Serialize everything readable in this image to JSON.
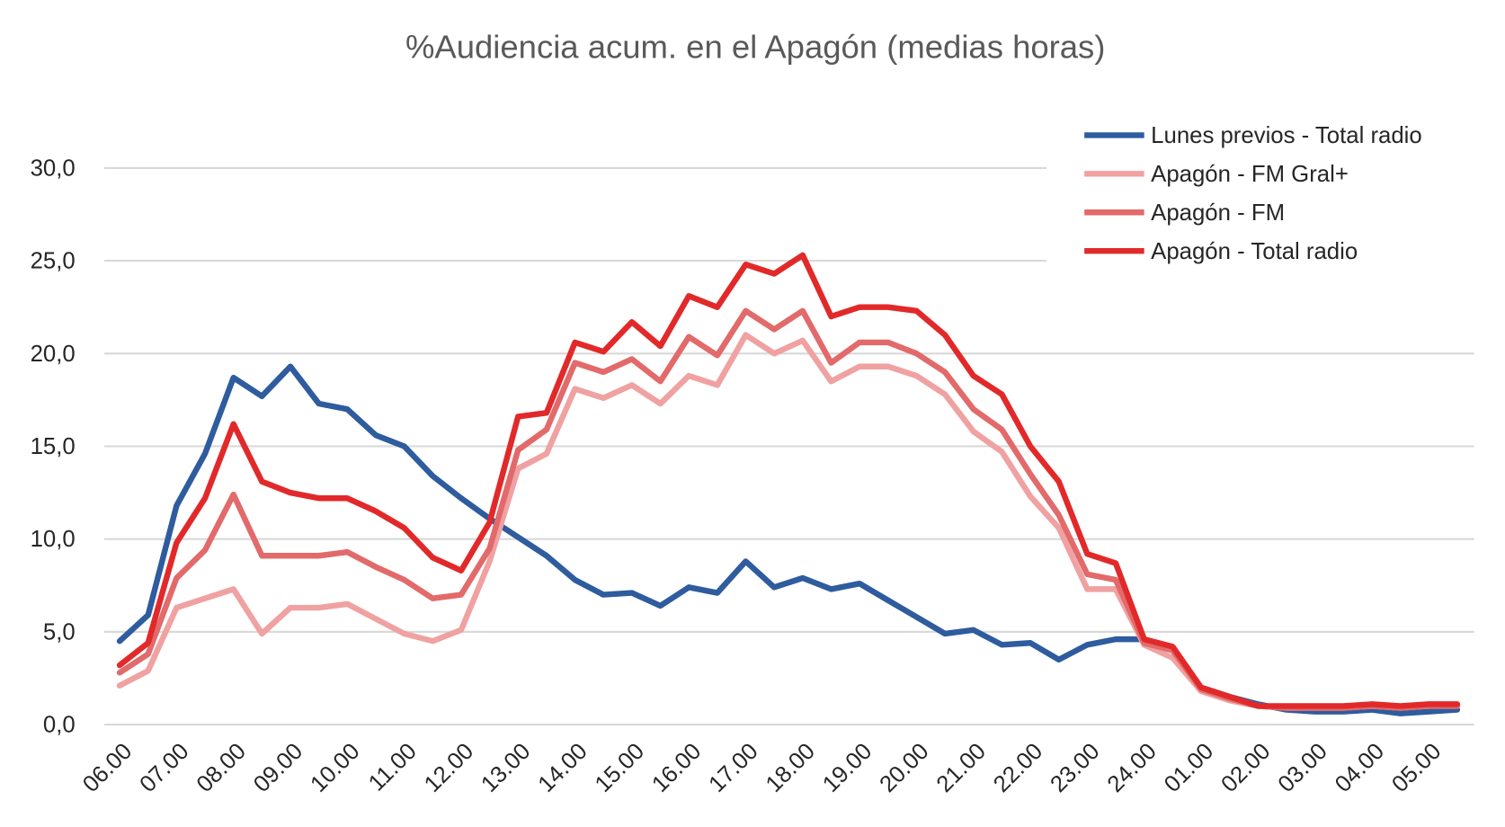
{
  "chart_data": {
    "type": "line",
    "title": "%Audiencia acum. en el Apagón (medias horas)",
    "xlabel": "",
    "ylabel": "",
    "ylim": [
      0,
      30
    ],
    "yticks": [
      "0,0",
      "5,0",
      "10,0",
      "15,0",
      "20,0",
      "25,0",
      "30,0"
    ],
    "grid": true,
    "legend_position": "top-right",
    "x": [
      "06.00",
      "06.30",
      "07.00",
      "07.30",
      "08.00",
      "08.30",
      "09.00",
      "09.30",
      "10.00",
      "10.30",
      "11.00",
      "11.30",
      "12.00",
      "12.30",
      "13.00",
      "13.30",
      "14.00",
      "14.30",
      "15.00",
      "15.30",
      "16.00",
      "16.30",
      "17.00",
      "17.30",
      "18.00",
      "18.30",
      "19.00",
      "19.30",
      "20.00",
      "20.30",
      "21.00",
      "21.30",
      "22.00",
      "22.30",
      "23.00",
      "23.30",
      "24.00",
      "00.30",
      "01.00",
      "01.30",
      "02.00",
      "02.30",
      "03.00",
      "03.30",
      "04.00",
      "04.30",
      "05.00",
      "05.30"
    ],
    "xtick_labels": [
      "06.00",
      "07.00",
      "08.00",
      "09.00",
      "10.00",
      "11.00",
      "12.00",
      "13.00",
      "14.00",
      "15.00",
      "16.00",
      "17.00",
      "18.00",
      "19.00",
      "20.00",
      "21.00",
      "22.00",
      "23.00",
      "24.00",
      "01.00",
      "02.00",
      "03.00",
      "04.00",
      "05.00"
    ],
    "series": [
      {
        "name": "Lunes previos - Total radio",
        "color": "#2e5c9e",
        "values": [
          4.5,
          5.9,
          11.8,
          14.6,
          18.7,
          17.7,
          19.3,
          17.3,
          17.0,
          15.6,
          15.0,
          13.4,
          12.2,
          11.1,
          10.1,
          9.1,
          7.8,
          7.0,
          7.1,
          6.4,
          7.4,
          7.1,
          8.8,
          7.4,
          7.9,
          7.3,
          7.6,
          6.7,
          5.8,
          4.9,
          5.1,
          4.3,
          4.4,
          3.5,
          4.3,
          4.6,
          4.6,
          4.1,
          2.0,
          1.5,
          1.1,
          0.8,
          0.7,
          0.7,
          0.8,
          0.6,
          0.7,
          0.8
        ]
      },
      {
        "name": "Apagón - FM Gral+",
        "color": "#f0a1a1",
        "values": [
          2.1,
          2.9,
          6.3,
          6.8,
          7.3,
          4.9,
          6.3,
          6.3,
          6.5,
          5.7,
          4.9,
          4.5,
          5.1,
          8.8,
          13.8,
          14.6,
          18.1,
          17.6,
          18.3,
          17.3,
          18.8,
          18.3,
          21.0,
          20.0,
          20.7,
          18.5,
          19.3,
          19.3,
          18.8,
          17.8,
          15.8,
          14.7,
          12.3,
          10.6,
          7.3,
          7.3,
          4.3,
          3.6,
          1.8,
          1.3,
          1.0,
          0.9,
          0.9,
          0.9,
          1.0,
          0.9,
          1.0,
          1.0
        ]
      },
      {
        "name": "Apagón - FM",
        "color": "#e26a6a",
        "values": [
          2.8,
          3.8,
          7.9,
          9.4,
          12.4,
          9.1,
          9.1,
          9.1,
          9.3,
          8.5,
          7.8,
          6.8,
          7.0,
          9.5,
          14.8,
          15.9,
          19.5,
          19.0,
          19.7,
          18.5,
          20.9,
          19.9,
          22.3,
          21.3,
          22.3,
          19.5,
          20.6,
          20.6,
          20.0,
          19.0,
          17.0,
          15.9,
          13.5,
          11.3,
          8.1,
          7.8,
          4.4,
          4.0,
          1.9,
          1.4,
          1.0,
          0.9,
          0.9,
          0.9,
          1.0,
          0.9,
          1.0,
          1.0
        ]
      },
      {
        "name": "Apagón - Total radio",
        "color": "#e2292a",
        "values": [
          3.2,
          4.4,
          9.8,
          12.2,
          16.2,
          13.1,
          12.5,
          12.2,
          12.2,
          11.5,
          10.6,
          9.0,
          8.3,
          10.9,
          16.6,
          16.8,
          20.6,
          20.1,
          21.7,
          20.4,
          23.1,
          22.5,
          24.8,
          24.3,
          25.3,
          22.0,
          22.5,
          22.5,
          22.3,
          21.0,
          18.8,
          17.8,
          15.0,
          13.1,
          9.2,
          8.7,
          4.6,
          4.2,
          2.0,
          1.5,
          1.0,
          1.0,
          1.0,
          1.0,
          1.1,
          1.0,
          1.1,
          1.1
        ]
      }
    ]
  }
}
